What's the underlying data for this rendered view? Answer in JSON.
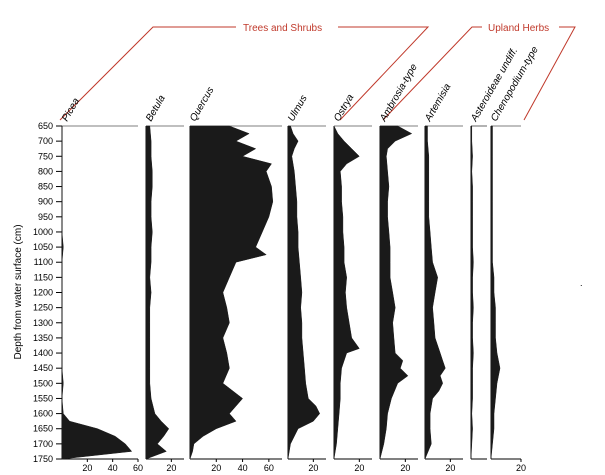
{
  "chart_data": {
    "type": "area",
    "title": "",
    "ylabel": "Depth from water surface (cm)",
    "ylim": [
      650,
      1750
    ],
    "y_ticks": [
      650,
      700,
      750,
      800,
      850,
      900,
      950,
      1000,
      1050,
      1100,
      1150,
      1200,
      1250,
      1300,
      1350,
      1400,
      1450,
      1500,
      1550,
      1600,
      1650,
      1700,
      1750
    ],
    "y_reversed": true,
    "groups": [
      {
        "label": "Trees and Shrubs",
        "taxa": [
          "Picea",
          "Betula",
          "Quercus",
          "Ulmus",
          "Ostrya"
        ]
      },
      {
        "label": "Upland Herbs",
        "taxa": [
          "Ambrosia-type",
          "Artemisia",
          "Asteroideae undiff.",
          "Chenopodium-type"
        ]
      }
    ],
    "fill_color": "#1a1a1a",
    "series": [
      {
        "name": "Picea",
        "xlim": [
          0,
          60
        ],
        "x_ticks": [
          20,
          40,
          60
        ],
        "depth": [
          650,
          700,
          750,
          800,
          850,
          900,
          950,
          1000,
          1050,
          1100,
          1150,
          1200,
          1250,
          1300,
          1350,
          1400,
          1450,
          1500,
          1550,
          1600,
          1625,
          1650,
          1675,
          1700,
          1725,
          1750
        ],
        "values": [
          0,
          0,
          0,
          0,
          0,
          0,
          0,
          0,
          1,
          0,
          0,
          0,
          0,
          0,
          0,
          0,
          0,
          1,
          0,
          1,
          6,
          28,
          42,
          50,
          55,
          0
        ]
      },
      {
        "name": "Betula",
        "xlim": [
          0,
          30
        ],
        "x_ticks": [
          20
        ],
        "depth": [
          650,
          700,
          750,
          800,
          850,
          900,
          950,
          1000,
          1050,
          1100,
          1150,
          1200,
          1250,
          1300,
          1350,
          1400,
          1450,
          1500,
          1550,
          1600,
          1625,
          1650,
          1675,
          1700,
          1725,
          1750
        ],
        "values": [
          3,
          4,
          4,
          5,
          5,
          4,
          4,
          5,
          4,
          4,
          3,
          4,
          3,
          3,
          3,
          3,
          3,
          3,
          4,
          7,
          12,
          18,
          14,
          9,
          16,
          0
        ]
      },
      {
        "name": "Quercus",
        "xlim": [
          0,
          70
        ],
        "x_ticks": [
          20,
          40,
          60
        ],
        "depth": [
          650,
          675,
          700,
          725,
          750,
          775,
          800,
          850,
          900,
          950,
          1000,
          1050,
          1075,
          1100,
          1150,
          1200,
          1250,
          1300,
          1350,
          1400,
          1450,
          1500,
          1550,
          1600,
          1625,
          1650,
          1675,
          1700,
          1725,
          1750
        ],
        "values": [
          30,
          45,
          35,
          50,
          40,
          62,
          58,
          62,
          63,
          60,
          55,
          50,
          58,
          35,
          30,
          25,
          28,
          30,
          25,
          28,
          30,
          25,
          40,
          30,
          35,
          20,
          10,
          3,
          2,
          0
        ]
      },
      {
        "name": "Ulmus",
        "xlim": [
          0,
          30
        ],
        "x_ticks": [
          20
        ],
        "depth": [
          650,
          675,
          700,
          725,
          750,
          800,
          850,
          900,
          950,
          1000,
          1050,
          1100,
          1150,
          1200,
          1250,
          1300,
          1350,
          1400,
          1450,
          1500,
          1550,
          1575,
          1600,
          1625,
          1650,
          1700,
          1750
        ],
        "values": [
          2,
          4,
          8,
          5,
          3,
          5,
          6,
          7,
          7,
          8,
          8,
          9,
          10,
          11,
          10,
          11,
          11,
          12,
          13,
          14,
          16,
          22,
          25,
          20,
          8,
          2,
          0
        ]
      },
      {
        "name": "Ostrya",
        "xlim": [
          0,
          30
        ],
        "x_ticks": [
          20
        ],
        "depth": [
          650,
          675,
          700,
          725,
          750,
          775,
          800,
          850,
          900,
          950,
          1000,
          1050,
          1100,
          1150,
          1200,
          1250,
          1300,
          1350,
          1385,
          1400,
          1450,
          1500,
          1550,
          1600,
          1650,
          1700,
          1750
        ],
        "values": [
          0,
          3,
          8,
          14,
          20,
          10,
          5,
          6,
          6,
          7,
          7,
          8,
          8,
          10,
          9,
          10,
          12,
          14,
          20,
          10,
          6,
          5,
          5,
          4,
          3,
          2,
          0
        ]
      },
      {
        "name": "Ambrosia-type",
        "xlim": [
          0,
          30
        ],
        "x_ticks": [
          20
        ],
        "depth": [
          650,
          675,
          700,
          725,
          750,
          800,
          850,
          900,
          950,
          1000,
          1050,
          1100,
          1150,
          1200,
          1250,
          1300,
          1350,
          1400,
          1425,
          1450,
          1475,
          1500,
          1550,
          1600,
          1650,
          1700,
          1750
        ],
        "values": [
          14,
          25,
          12,
          6,
          5,
          6,
          7,
          6,
          6,
          7,
          8,
          8,
          8,
          10,
          12,
          10,
          11,
          12,
          18,
          16,
          22,
          14,
          9,
          6,
          5,
          3,
          0
        ]
      },
      {
        "name": "Artemisia",
        "xlim": [
          0,
          30
        ],
        "x_ticks": [
          20
        ],
        "depth": [
          650,
          700,
          750,
          800,
          850,
          900,
          950,
          1000,
          1050,
          1100,
          1150,
          1200,
          1250,
          1300,
          1350,
          1400,
          1425,
          1450,
          1475,
          1500,
          1525,
          1550,
          1600,
          1650,
          1700,
          1750
        ],
        "values": [
          2,
          2,
          3,
          3,
          3,
          3,
          3,
          4,
          5,
          6,
          10,
          8,
          6,
          7,
          8,
          12,
          14,
          16,
          12,
          14,
          11,
          6,
          4,
          4,
          5,
          0
        ]
      },
      {
        "name": "Asteroideae undiff.",
        "xlim": [
          0,
          10
        ],
        "x_ticks": [],
        "depth": [
          650,
          700,
          750,
          800,
          850,
          900,
          950,
          1000,
          1050,
          1100,
          1150,
          1200,
          1250,
          1300,
          1350,
          1400,
          1450,
          1500,
          1550,
          1600,
          1650,
          1700,
          1750
        ],
        "values": [
          0.5,
          0.5,
          1,
          0.5,
          1,
          1,
          1,
          1,
          1,
          1.5,
          1,
          1,
          1.5,
          1,
          1,
          1.5,
          1,
          1,
          1,
          0.5,
          1,
          0.5,
          0
        ]
      },
      {
        "name": "Chenopodium-type",
        "xlim": [
          0,
          20
        ],
        "x_ticks": [
          20
        ],
        "depth": [
          650,
          700,
          750,
          800,
          850,
          900,
          950,
          1000,
          1050,
          1100,
          1150,
          1200,
          1250,
          1300,
          1350,
          1400,
          1425,
          1450,
          1475,
          1500,
          1550,
          1600,
          1650,
          1700,
          1750
        ],
        "values": [
          1,
          1,
          1,
          1,
          1,
          1,
          1,
          1,
          1,
          1,
          2,
          2,
          3,
          3,
          3,
          4,
          5,
          6,
          5,
          4,
          3,
          2,
          2,
          1,
          0
        ]
      }
    ]
  }
}
